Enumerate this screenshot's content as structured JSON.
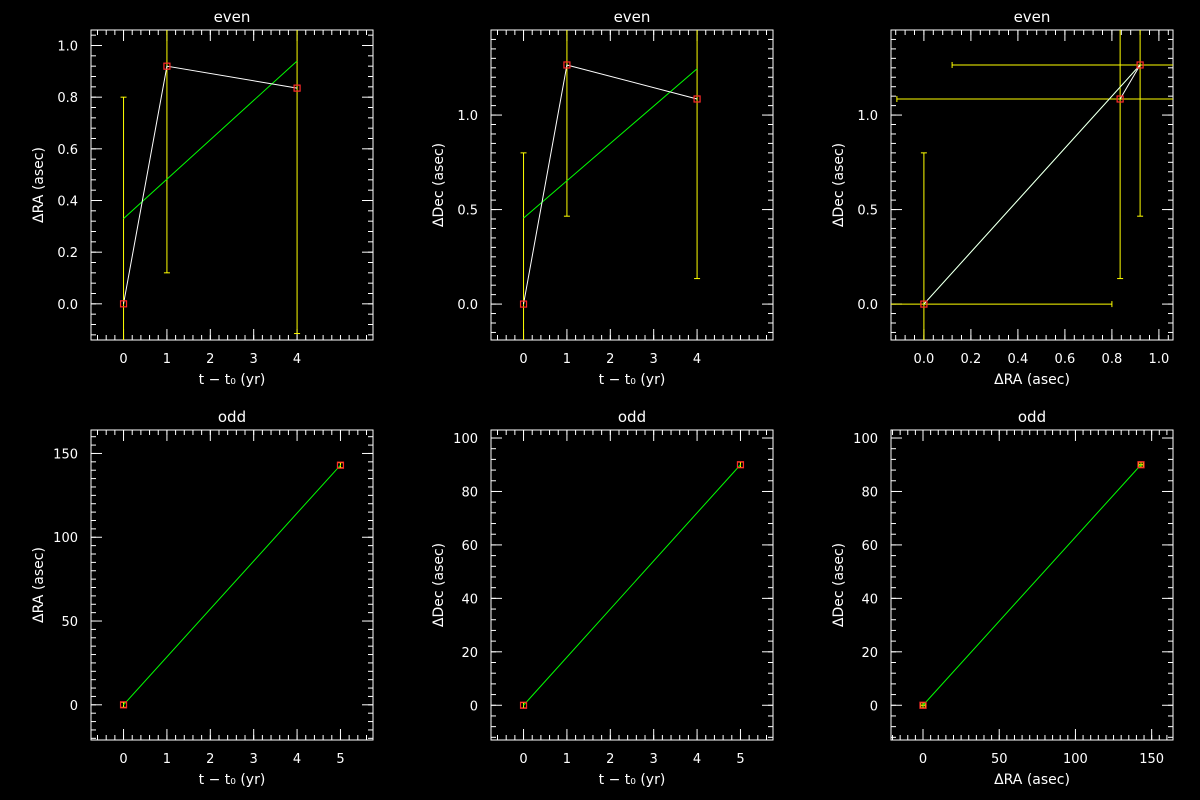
{
  "colors": {
    "background": "#000000",
    "axes": "#ffffff",
    "errorbar": "#ffff00",
    "fit": "#00ff00",
    "data_line": "#ffffff",
    "points": "#ff2a2a"
  },
  "chart_data": [
    {
      "type": "scatter",
      "title": "even",
      "xlabel": "t − t₀ (yr)",
      "ylabel": "ΔRA (asec)",
      "xlim": [
        -0.75,
        5.75
      ],
      "ylim": [
        -0.14,
        1.06
      ],
      "xticks": [
        0,
        1,
        2,
        3,
        4
      ],
      "xtick_labels": [
        "0",
        "1",
        "2",
        "3",
        "4"
      ],
      "yticks": [
        0,
        0.2,
        0.4,
        0.6,
        0.8,
        1.0
      ],
      "ytick_labels": [
        "0.0",
        "0.2",
        "0.4",
        "0.6",
        "0.8",
        "1.0"
      ],
      "xminor": 0.2,
      "yminor": 0.04,
      "points": [
        {
          "x": 0,
          "y": 0.0
        },
        {
          "x": 1,
          "y": 0.92
        },
        {
          "x": 4,
          "y": 0.835
        }
      ],
      "yerr": [
        0.8,
        0.8,
        0.95
      ],
      "xerr": [
        0,
        0,
        0
      ],
      "connect": true,
      "fit": [
        {
          "x": 0,
          "y": 0.33
        },
        {
          "x": 4,
          "y": 0.94
        }
      ]
    },
    {
      "type": "scatter",
      "title": "even",
      "xlabel": "t − t₀ (yr)",
      "ylabel": "ΔDec (asec)",
      "xlim": [
        -0.75,
        5.75
      ],
      "ylim": [
        -0.19,
        1.45
      ],
      "xticks": [
        0,
        1,
        2,
        3,
        4
      ],
      "xtick_labels": [
        "0",
        "1",
        "2",
        "3",
        "4"
      ],
      "yticks": [
        0,
        0.5,
        1.0
      ],
      "ytick_labels": [
        "0.0",
        "0.5",
        "1.0"
      ],
      "xminor": 0.2,
      "yminor": 0.05,
      "points": [
        {
          "x": 0,
          "y": 0.0
        },
        {
          "x": 1,
          "y": 1.265
        },
        {
          "x": 4,
          "y": 1.085
        }
      ],
      "yerr": [
        0.8,
        0.8,
        0.95
      ],
      "xerr": [
        0,
        0,
        0
      ],
      "connect": true,
      "fit": [
        {
          "x": 0,
          "y": 0.455
        },
        {
          "x": 4,
          "y": 1.245
        }
      ]
    },
    {
      "type": "scatter",
      "title": "even",
      "xlabel": "ΔRA (asec)",
      "ylabel": "ΔDec (asec)",
      "xlim": [
        -0.14,
        1.06
      ],
      "ylim": [
        -0.19,
        1.45
      ],
      "xticks": [
        0,
        0.2,
        0.4,
        0.6,
        0.8,
        1.0
      ],
      "xtick_labels": [
        "0.0",
        "0.2",
        "0.4",
        "0.6",
        "0.8",
        "1.0"
      ],
      "yticks": [
        0,
        0.5,
        1.0
      ],
      "ytick_labels": [
        "0.0",
        "0.5",
        "1.0"
      ],
      "xminor": 0.04,
      "yminor": 0.05,
      "points": [
        {
          "x": 0.0,
          "y": 0.0
        },
        {
          "x": 0.92,
          "y": 1.265
        },
        {
          "x": 0.835,
          "y": 1.085
        }
      ],
      "yerr": [
        0.8,
        0.8,
        0.95
      ],
      "xerr": [
        0.8,
        0.8,
        0.95
      ],
      "connect": true,
      "fit": [
        {
          "x": 0.0,
          "y": 0.0
        },
        {
          "x": 0.92,
          "y": 1.265
        }
      ]
    },
    {
      "type": "scatter",
      "title": "odd",
      "xlabel": "t − t₀ (yr)",
      "ylabel": "ΔRA (asec)",
      "xlim": [
        -0.75,
        5.75
      ],
      "ylim": [
        -21,
        164
      ],
      "xticks": [
        0,
        1,
        2,
        3,
        4,
        5
      ],
      "xtick_labels": [
        "0",
        "1",
        "2",
        "3",
        "4",
        "5"
      ],
      "yticks": [
        0,
        50,
        100,
        150
      ],
      "ytick_labels": [
        "0",
        "50",
        "100",
        "150"
      ],
      "xminor": 0.2,
      "yminor": 5,
      "points": [
        {
          "x": 0,
          "y": 0
        },
        {
          "x": 5,
          "y": 143
        }
      ],
      "yerr": [
        1.5,
        1.5
      ],
      "xerr": [
        0,
        0
      ],
      "connect": false,
      "fit": [
        {
          "x": 0,
          "y": 0
        },
        {
          "x": 5,
          "y": 143
        }
      ]
    },
    {
      "type": "scatter",
      "title": "odd",
      "xlabel": "t − t₀ (yr)",
      "ylabel": "ΔDec (asec)",
      "xlim": [
        -0.75,
        5.75
      ],
      "ylim": [
        -13,
        103
      ],
      "xticks": [
        0,
        1,
        2,
        3,
        4,
        5
      ],
      "xtick_labels": [
        "0",
        "1",
        "2",
        "3",
        "4",
        "5"
      ],
      "yticks": [
        0,
        20,
        40,
        60,
        80,
        100
      ],
      "ytick_labels": [
        "0",
        "20",
        "40",
        "60",
        "80",
        "100"
      ],
      "xminor": 0.2,
      "yminor": 4,
      "points": [
        {
          "x": 0,
          "y": 0
        },
        {
          "x": 5,
          "y": 90
        }
      ],
      "yerr": [
        1.0,
        1.0
      ],
      "xerr": [
        0,
        0
      ],
      "connect": false,
      "fit": [
        {
          "x": 0,
          "y": 0
        },
        {
          "x": 5,
          "y": 90
        }
      ]
    },
    {
      "type": "scatter",
      "title": "odd",
      "xlabel": "ΔRA (asec)",
      "ylabel": "ΔDec (asec)",
      "xlim": [
        -21,
        164
      ],
      "ylim": [
        -13,
        103
      ],
      "xticks": [
        0,
        50,
        100,
        150
      ],
      "xtick_labels": [
        "0",
        "50",
        "100",
        "150"
      ],
      "yticks": [
        0,
        20,
        40,
        60,
        80,
        100
      ],
      "ytick_labels": [
        "0",
        "20",
        "40",
        "60",
        "80",
        "100"
      ],
      "xminor": 5,
      "yminor": 4,
      "points": [
        {
          "x": 0,
          "y": 0
        },
        {
          "x": 143,
          "y": 90
        }
      ],
      "yerr": [
        1.0,
        1.0
      ],
      "xerr": [
        1.5,
        1.5
      ],
      "connect": false,
      "fit": [
        {
          "x": 0,
          "y": 0
        },
        {
          "x": 143,
          "y": 90
        }
      ]
    }
  ]
}
